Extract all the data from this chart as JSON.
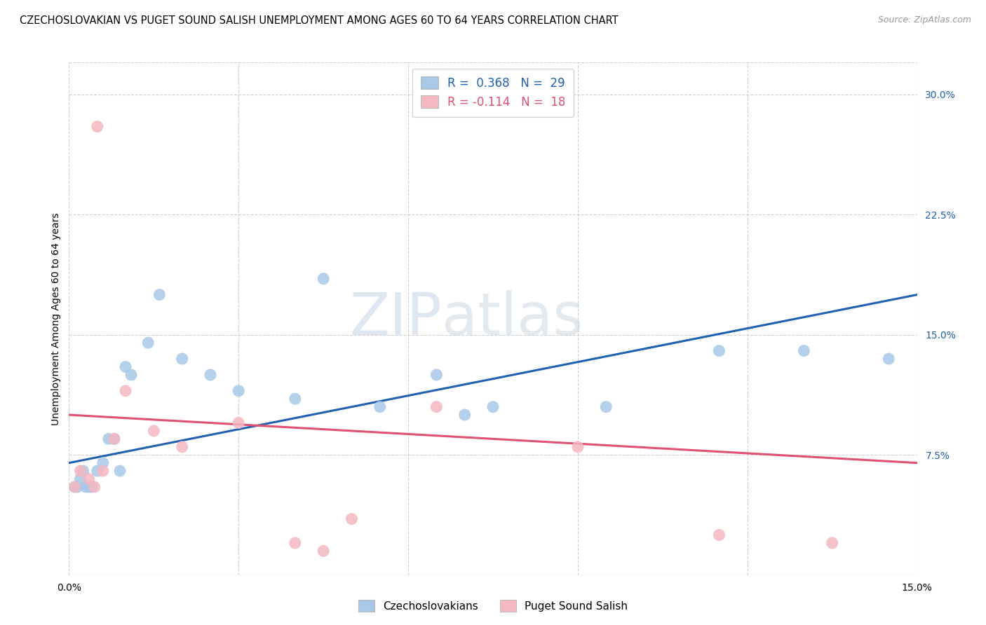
{
  "title": "CZECHOSLOVAKIAN VS PUGET SOUND SALISH UNEMPLOYMENT AMONG AGES 60 TO 64 YEARS CORRELATION CHART",
  "source": "Source: ZipAtlas.com",
  "ylabel": "Unemployment Among Ages 60 to 64 years",
  "xlim": [
    0.0,
    15.0
  ],
  "ylim": [
    0.0,
    32.0
  ],
  "yticks": [
    0.0,
    7.5,
    15.0,
    22.5,
    30.0
  ],
  "ytick_labels": [
    "",
    "7.5%",
    "15.0%",
    "22.5%",
    "30.0%"
  ],
  "xtick_positions": [
    0.0,
    3.0,
    6.0,
    9.0,
    12.0,
    15.0
  ],
  "xtick_labels": [
    "0.0%",
    "",
    "",
    "",
    "",
    "15.0%"
  ],
  "blue_R": "0.368",
  "blue_N": "29",
  "pink_R": "-0.114",
  "pink_N": "18",
  "legend_labels": [
    "Czechoslovakians",
    "Puget Sound Salish"
  ],
  "blue_color": "#a8c8e8",
  "pink_color": "#f4b8c0",
  "blue_line_color": "#2060b0",
  "pink_line_color": "#e05070",
  "blue_scatter_x": [
    0.1,
    0.15,
    0.2,
    0.25,
    0.3,
    0.35,
    0.4,
    0.5,
    0.6,
    0.7,
    0.8,
    0.9,
    1.0,
    1.1,
    1.4,
    1.6,
    2.0,
    2.5,
    3.0,
    4.0,
    4.5,
    5.5,
    6.5,
    7.0,
    7.5,
    9.5,
    11.5,
    13.0,
    14.5
  ],
  "blue_scatter_y": [
    5.5,
    5.5,
    6.0,
    6.5,
    5.5,
    5.5,
    5.5,
    6.5,
    7.0,
    8.5,
    8.5,
    6.5,
    13.0,
    12.5,
    14.5,
    17.5,
    13.5,
    12.5,
    11.5,
    11.0,
    18.5,
    10.5,
    12.5,
    10.0,
    10.5,
    10.5,
    14.0,
    14.0,
    13.5
  ],
  "pink_scatter_x": [
    0.1,
    0.2,
    0.35,
    0.45,
    0.6,
    0.8,
    1.0,
    1.5,
    2.0,
    3.0,
    4.0,
    4.5,
    6.5,
    9.0,
    11.5,
    13.5,
    0.5,
    5.0
  ],
  "pink_scatter_y": [
    5.5,
    6.5,
    6.0,
    5.5,
    6.5,
    8.5,
    11.5,
    9.0,
    8.0,
    9.5,
    2.0,
    1.5,
    10.5,
    8.0,
    2.5,
    2.0,
    28.0,
    3.5
  ],
  "blue_line_x": [
    0.0,
    15.0
  ],
  "blue_line_y": [
    7.0,
    17.5
  ],
  "pink_line_x": [
    0.0,
    15.0
  ],
  "pink_line_y": [
    10.0,
    7.0
  ],
  "watermark_zip": "ZIP",
  "watermark_atlas": "atlas",
  "background_color": "#ffffff",
  "grid_color": "#d0d0d0",
  "title_fontsize": 10.5,
  "axis_label_fontsize": 10,
  "scatter_size": 150,
  "legend_fontsize": 12
}
